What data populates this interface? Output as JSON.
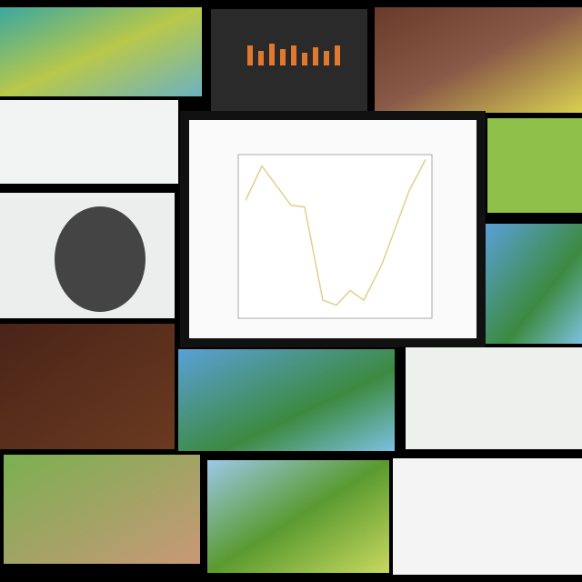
{
  "chart_data": {
    "type": "line",
    "color": "#e3cf8e",
    "x": [
      0,
      0.9,
      2.5,
      3.25,
      4.25,
      5,
      5.75,
      6.5,
      7.5,
      9,
      9.9
    ],
    "values": [
      7.2,
      9.3,
      6.9,
      6.8,
      1.1,
      0.8,
      1.7,
      1.1,
      3.3,
      7.8,
      9.7
    ],
    "xlim": [
      0,
      10
    ],
    "ylim": [
      0,
      10
    ]
  }
}
